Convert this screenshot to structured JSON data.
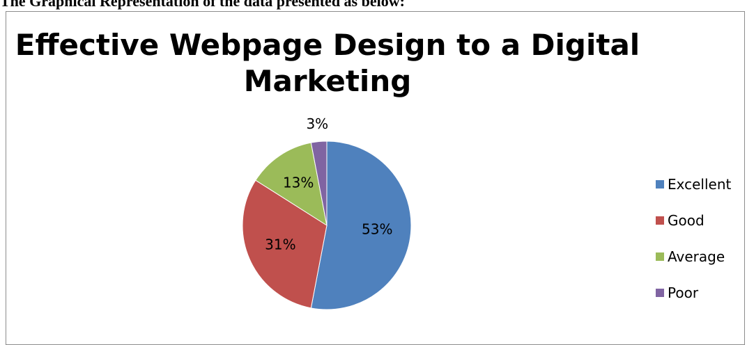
{
  "document": {
    "heading": "The Graphical Representation of the data presented as below:"
  },
  "chart_data": {
    "type": "pie",
    "title_lines": [
      "Effective Webpage Design to a Digital",
      "Marketing"
    ],
    "categories": [
      "Excellent",
      "Good",
      "Average",
      "Poor"
    ],
    "values": [
      53,
      31,
      13,
      3
    ],
    "data_labels": [
      "53%",
      "31%",
      "13%",
      "3%"
    ],
    "colors": [
      "#4f81bd",
      "#c0504d",
      "#9bbb59",
      "#8064a2"
    ],
    "legend_position": "right"
  }
}
